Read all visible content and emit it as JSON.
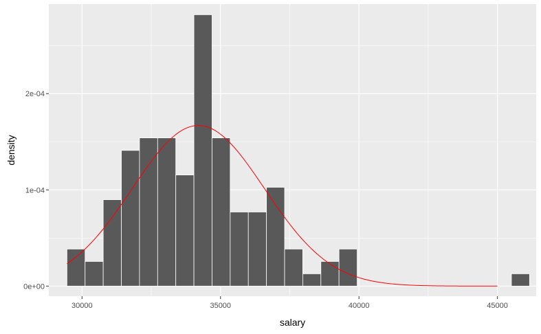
{
  "chart_data": {
    "type": "bar",
    "subtype": "histogram-with-density-curve",
    "title": "",
    "xlabel": "salary",
    "ylabel": "density",
    "xlim": [
      28800,
      46400
    ],
    "ylim": [
      -1.05e-05,
      0.000293
    ],
    "x_major_ticks": [
      30000,
      35000,
      40000,
      45000
    ],
    "x_tick_labels": [
      "30000",
      "35000",
      "40000",
      "45000"
    ],
    "x_minor_gridlines": [
      32500,
      37500,
      42500
    ],
    "y_major_ticks": [
      0,
      0.0001,
      0.0002
    ],
    "y_tick_labels": [
      "0e+00",
      "1e-04",
      "2e-04"
    ],
    "y_minor_gridlines": [
      5e-05,
      0.00015,
      0.00025
    ],
    "grid": true,
    "bins": {
      "width": 655,
      "starts": [
        29455,
        30110,
        30765,
        31420,
        32075,
        32730,
        33385,
        34040,
        34695,
        35350,
        36005,
        36660,
        37315,
        37970,
        38625,
        39280,
        45505
      ],
      "values": [
        3.85e-05,
        2.56e-05,
        8.98e-05,
        0.000141,
        0.000154,
        0.000154,
        0.0001155,
        0.000282,
        0.000154,
        7.7e-05,
        7.7e-05,
        0.0001027,
        3.85e-05,
        1.28e-05,
        2.56e-05,
        3.85e-05,
        1.28e-05
      ]
    },
    "normal_curve": {
      "mean": 34200,
      "sd": 2390,
      "x_range": [
        29455,
        45000
      ],
      "color": "#ff0000"
    },
    "colors": {
      "bar_fill": "#595959",
      "bar_stroke": "#ffffff",
      "panel_background": "#ebebeb",
      "grid": "#ffffff",
      "curve": "#ff0000"
    }
  }
}
